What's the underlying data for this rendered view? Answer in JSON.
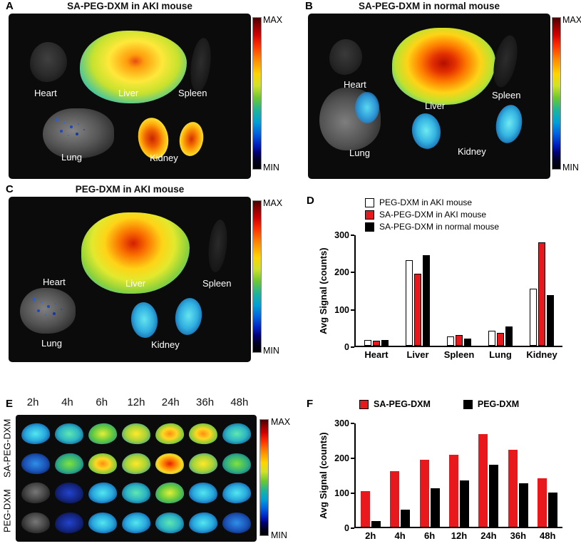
{
  "figure": {
    "panel_a": {
      "letter": "A",
      "title": "SA-PEG-DXM in AKI mouse",
      "organ_labels": {
        "heart": "Heart",
        "liver": "Liver",
        "spleen": "Spleen",
        "lung": "Lung",
        "kidney": "Kidney"
      },
      "colorbar": {
        "max": "MAX",
        "min": "MIN"
      }
    },
    "panel_b": {
      "letter": "B",
      "title": "SA-PEG-DXM in normal mouse",
      "organ_labels": {
        "heart": "Heart",
        "liver": "Liver",
        "spleen": "Spleen",
        "lung": "Lung",
        "kidney": "Kidney"
      },
      "colorbar": {
        "max": "MAX",
        "min": "MIN"
      }
    },
    "panel_c": {
      "letter": "C",
      "title": "PEG-DXM in AKI mouse",
      "organ_labels": {
        "heart": "Heart",
        "liver": "Liver",
        "spleen": "Spleen",
        "lung": "Lung",
        "kidney": "Kidney"
      },
      "colorbar": {
        "max": "MAX",
        "min": "MIN"
      }
    },
    "panel_d": {
      "letter": "D"
    },
    "panel_e": {
      "letter": "E",
      "time_labels": [
        "2h",
        "4h",
        "6h",
        "12h",
        "24h",
        "36h",
        "48h"
      ],
      "row_labels": [
        "SA-PEG-DXM",
        "PEG-DXM"
      ],
      "colorbar": {
        "max": "MAX",
        "min": "MIN"
      },
      "kidney_grid": [
        [
          "cyan",
          "cyangreen",
          "greenyellow",
          "yellow",
          "yelloworange",
          "yelloworange",
          "cyangreen"
        ],
        [
          "blue",
          "green",
          "yelloworange",
          "yellow",
          "orangered",
          "yellow",
          "green"
        ],
        [
          "gray",
          "darkblue",
          "cyan",
          "cyangreen",
          "greenyellow",
          "cyan",
          "cyan"
        ],
        [
          "gray",
          "darkblue",
          "cyan",
          "cyan",
          "cyangreen",
          "cyan",
          "blue"
        ]
      ]
    },
    "panel_f": {
      "letter": "F"
    }
  },
  "chart_data": [
    {
      "panel": "D",
      "type": "bar",
      "categories": [
        "Heart",
        "Liver",
        "Spleen",
        "Lung",
        "Kidney"
      ],
      "series": [
        {
          "name": "PEG-DXM in AKI mouse",
          "color": "#ffffff",
          "border": true,
          "values": [
            15,
            232,
            25,
            40,
            155
          ]
        },
        {
          "name": "SA-PEG-DXM in AKI mouse",
          "color": "#e8191c",
          "border": true,
          "values": [
            13,
            196,
            29,
            34,
            281
          ]
        },
        {
          "name": "SA-PEG-DXM in normal mouse",
          "color": "#000000",
          "border": true,
          "values": [
            15,
            246,
            19,
            53,
            137
          ]
        }
      ],
      "ylabel": "Avg Signal (counts)",
      "ylim": [
        0,
        300
      ],
      "yticks": [
        0,
        100,
        200,
        300
      ],
      "legend_position": "top-left-vertical",
      "grid": false
    },
    {
      "panel": "F",
      "type": "bar",
      "categories": [
        "2h",
        "4h",
        "6h",
        "12h",
        "24h",
        "36h",
        "48h"
      ],
      "series": [
        {
          "name": "SA-PEG-DXM",
          "color": "#e8191c",
          "border": false,
          "values": [
            104,
            161,
            194,
            208,
            269,
            224,
            141
          ]
        },
        {
          "name": "PEG-DXM",
          "color": "#000000",
          "border": false,
          "values": [
            16,
            49,
            112,
            135,
            180,
            127,
            100
          ]
        }
      ],
      "ylabel": "Avg Signal (counts)",
      "ylim": [
        0,
        300
      ],
      "yticks": [
        0,
        100,
        200,
        300
      ],
      "legend_position": "top-horizontal",
      "grid": false
    }
  ]
}
